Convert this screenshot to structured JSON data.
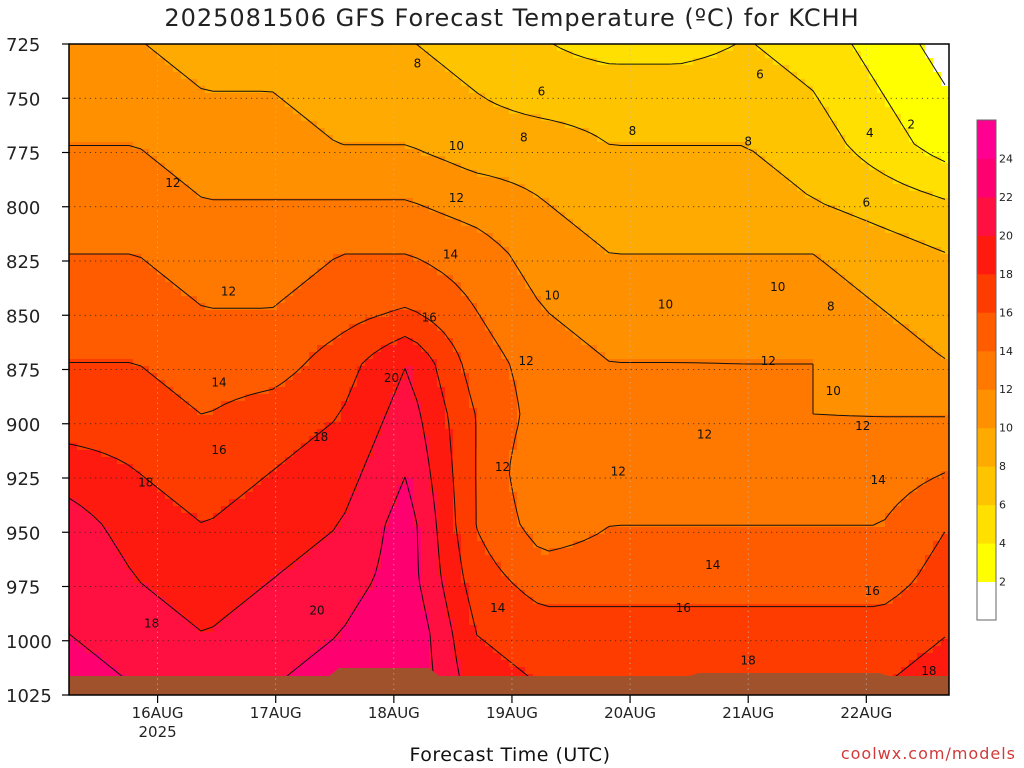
{
  "title": "2025081506 GFS Forecast Temperature (ºC) for KCHH",
  "credit": "coolwx.com/models",
  "chart_data": {
    "type": "heatmap",
    "title": "2025081506 GFS Forecast Temperature (ºC) for KCHH",
    "xlabel": "Forecast Time (UTC)",
    "ylabel": "",
    "y_axis": {
      "label": "Pressure (hPa)",
      "ticks": [
        725,
        750,
        775,
        800,
        825,
        850,
        875,
        900,
        925,
        950,
        975,
        1000,
        1025
      ],
      "range": [
        725,
        1025
      ],
      "inverted": true
    },
    "x_axis": {
      "ticks": [
        "16AUG",
        "17AUG",
        "18AUG",
        "19AUG",
        "20AUG",
        "21AUG",
        "22AUG"
      ],
      "year_label": "2025",
      "range_days": [
        0.25,
        7.7
      ]
    },
    "grid": "dotted",
    "colorbar": {
      "ticks": [
        2,
        4,
        6,
        8,
        10,
        12,
        14,
        16,
        18,
        20,
        22,
        24
      ],
      "range": [
        0,
        26
      ],
      "colors": [
        "#ffffff",
        "#ffff00",
        "#ffe000",
        "#ffc400",
        "#ffaa00",
        "#ff9000",
        "#ff7800",
        "#ff5c00",
        "#ff3c00",
        "#ff1a10",
        "#ff1040",
        "#ff0070",
        "#ff0090"
      ]
    },
    "contour_interval": 2,
    "temperature_rows": [
      {
        "pressure": 725,
        "values": [
          10,
          10,
          9,
          9,
          8,
          8,
          7,
          6,
          5,
          5,
          6,
          5,
          3,
          1
        ]
      },
      {
        "pressure": 750,
        "values": [
          11,
          11,
          10,
          10,
          9,
          9,
          8,
          7,
          7,
          7,
          7,
          6,
          4,
          2
        ]
      },
      {
        "pressure": 775,
        "values": [
          12,
          12,
          11,
          11,
          10,
          10,
          9,
          9,
          8,
          8,
          8,
          7,
          5,
          3
        ]
      },
      {
        "pressure": 800,
        "values": [
          13,
          13,
          12,
          12,
          12,
          12,
          11,
          10,
          9,
          9,
          9,
          8,
          7,
          6
        ]
      },
      {
        "pressure": 825,
        "values": [
          14,
          14,
          13,
          13,
          14,
          14,
          13,
          11,
          10,
          10,
          10,
          10,
          9,
          8
        ]
      },
      {
        "pressure": 850,
        "values": [
          15,
          15,
          14,
          14,
          15,
          16,
          14,
          12,
          11,
          11,
          11,
          11,
          10,
          9
        ]
      },
      {
        "pressure": 875,
        "values": [
          16,
          16,
          15,
          15,
          17,
          20,
          15,
          13,
          12,
          12,
          12,
          12,
          11,
          10
        ]
      },
      {
        "pressure": 900,
        "values": [
          17,
          17,
          16,
          17,
          18,
          21,
          16,
          13,
          13,
          13,
          12,
          12,
          12,
          12
        ]
      },
      {
        "pressure": 925,
        "values": [
          19,
          18,
          17,
          18,
          19,
          22,
          16,
          12,
          13,
          13,
          13,
          13,
          13,
          14
        ]
      },
      {
        "pressure": 950,
        "values": [
          21,
          19,
          18,
          19,
          20,
          23,
          16,
          13,
          14,
          14,
          14,
          14,
          14,
          16
        ]
      },
      {
        "pressure": 975,
        "values": [
          22,
          20,
          19,
          20,
          21,
          23,
          17,
          15,
          15,
          15,
          15,
          15,
          15,
          17
        ]
      },
      {
        "pressure": 1000,
        "values": [
          22,
          21,
          20,
          21,
          22,
          24,
          18,
          17,
          17,
          17,
          17,
          17,
          17,
          18
        ]
      },
      {
        "pressure": 1025,
        "values": [
          23,
          22,
          21,
          22,
          23,
          24,
          19,
          18,
          18,
          18,
          18,
          18,
          18,
          19
        ]
      }
    ],
    "contour_labels": [
      {
        "text": "8",
        "day": 2.2,
        "pressure": 734
      },
      {
        "text": "6",
        "day": 3.25,
        "pressure": 747
      },
      {
        "text": "6",
        "day": 5.1,
        "pressure": 739
      },
      {
        "text": "8",
        "day": 3.1,
        "pressure": 768
      },
      {
        "text": "8",
        "day": 4.02,
        "pressure": 765
      },
      {
        "text": "8",
        "day": 5.0,
        "pressure": 770
      },
      {
        "text": "10",
        "day": 2.53,
        "pressure": 772
      },
      {
        "text": "12",
        "day": 0.13,
        "pressure": 789
      },
      {
        "text": "12",
        "day": 2.53,
        "pressure": 796
      },
      {
        "text": "14",
        "day": 2.48,
        "pressure": 822
      },
      {
        "text": "16",
        "day": 2.3,
        "pressure": 851
      },
      {
        "text": "20",
        "day": 1.98,
        "pressure": 879
      },
      {
        "text": "12",
        "day": 0.6,
        "pressure": 839
      },
      {
        "text": "14",
        "day": 0.52,
        "pressure": 881
      },
      {
        "text": "16",
        "day": 0.52,
        "pressure": 912
      },
      {
        "text": "18",
        "day": 1.38,
        "pressure": 906
      },
      {
        "text": "18",
        "day": -0.1,
        "pressure": 927
      },
      {
        "text": "18",
        "day": -0.05,
        "pressure": 992
      },
      {
        "text": "20",
        "day": 1.35,
        "pressure": 986
      },
      {
        "text": "10",
        "day": 3.34,
        "pressure": 841
      },
      {
        "text": "12",
        "day": 3.12,
        "pressure": 871
      },
      {
        "text": "10",
        "day": 4.3,
        "pressure": 845
      },
      {
        "text": "12",
        "day": 3.9,
        "pressure": 922
      },
      {
        "text": "12",
        "day": 2.92,
        "pressure": 920
      },
      {
        "text": "12",
        "day": 4.63,
        "pressure": 905
      },
      {
        "text": "12",
        "day": 5.17,
        "pressure": 871
      },
      {
        "text": "10",
        "day": 5.25,
        "pressure": 837
      },
      {
        "text": "8",
        "day": 5.7,
        "pressure": 846
      },
      {
        "text": "10",
        "day": 5.72,
        "pressure": 885
      },
      {
        "text": "12",
        "day": 5.97,
        "pressure": 901
      },
      {
        "text": "14",
        "day": 2.88,
        "pressure": 985
      },
      {
        "text": "14",
        "day": 4.7,
        "pressure": 965
      },
      {
        "text": "16",
        "day": 4.45,
        "pressure": 985
      },
      {
        "text": "16",
        "day": 6.05,
        "pressure": 977
      },
      {
        "text": "14",
        "day": 6.1,
        "pressure": 926
      },
      {
        "text": "18",
        "day": 5.0,
        "pressure": 1009
      },
      {
        "text": "18",
        "day": 6.53,
        "pressure": 1014
      },
      {
        "text": "6",
        "day": 6.0,
        "pressure": 798
      },
      {
        "text": "4",
        "day": 6.03,
        "pressure": 766
      },
      {
        "text": "2",
        "day": 6.38,
        "pressure": 762
      }
    ]
  }
}
